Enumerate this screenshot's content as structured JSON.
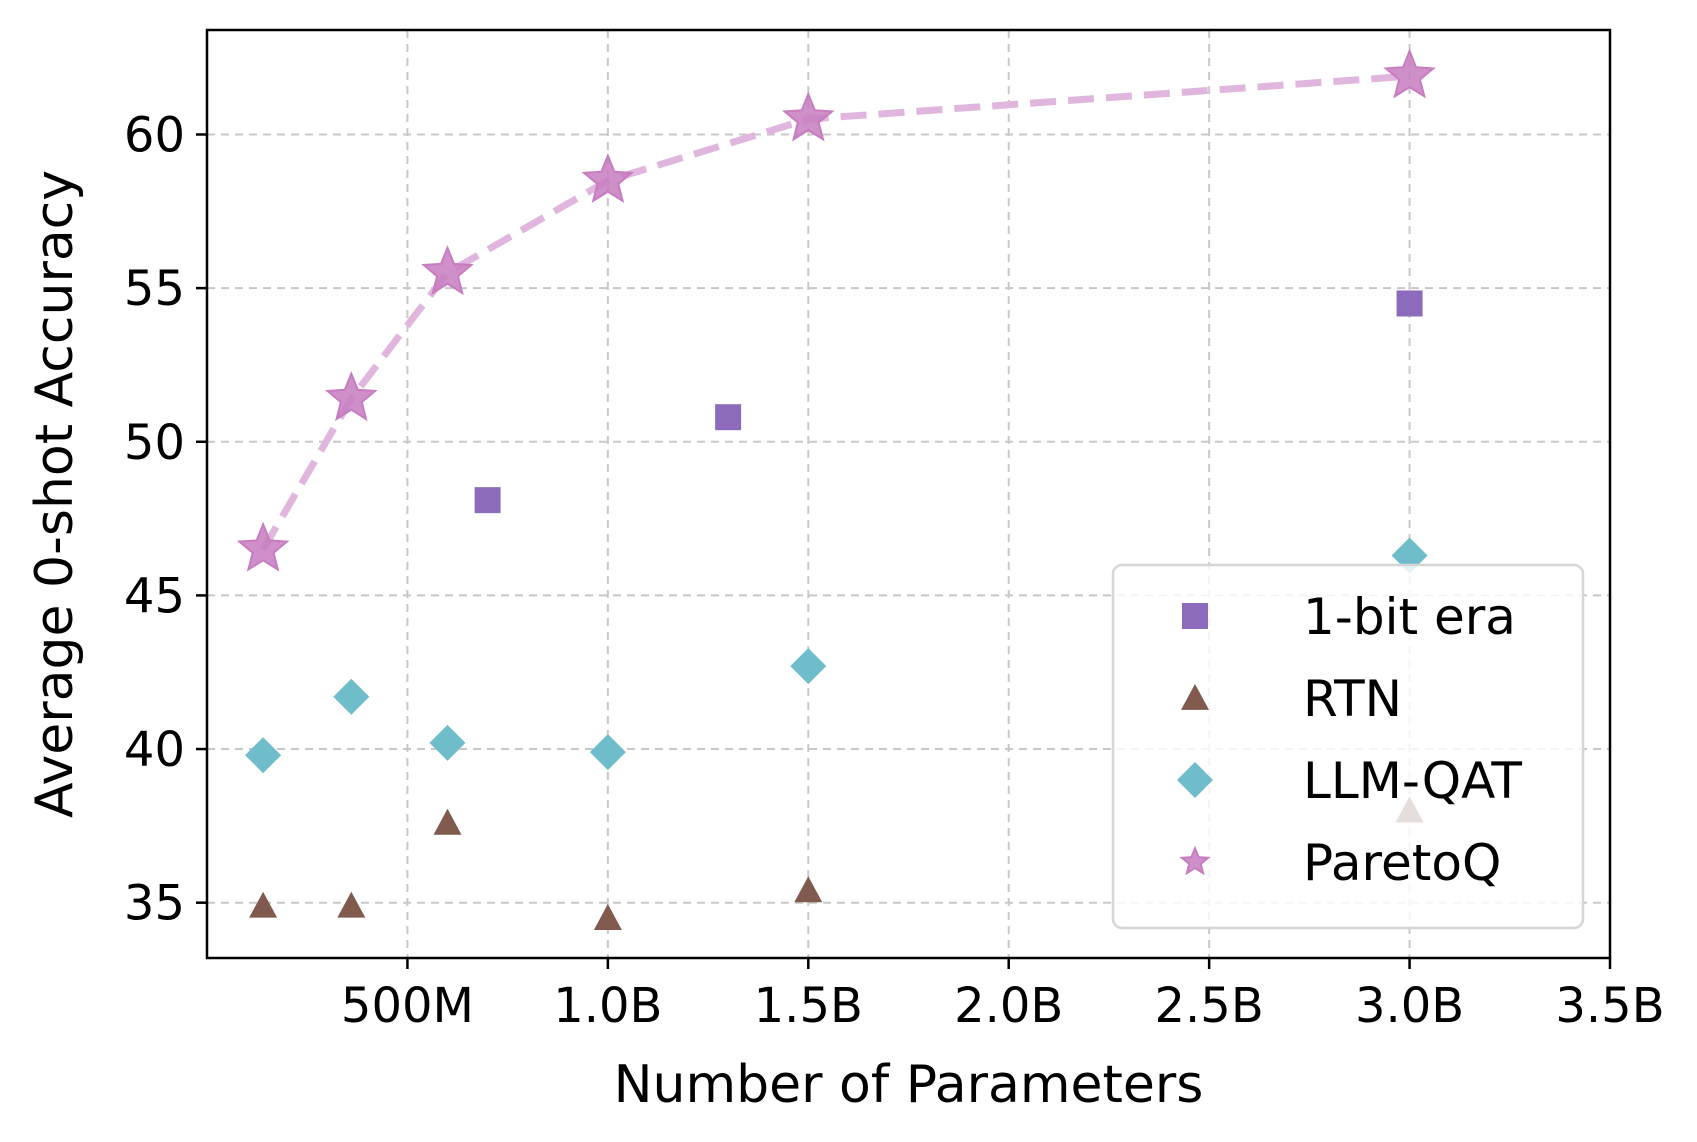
{
  "chart_data": {
    "type": "scatter",
    "title": "",
    "xlabel": "Number of Parameters",
    "ylabel": "Average 0-shot Accuracy",
    "xlim": [
      0.0,
      3.5
    ],
    "ylim": [
      33.2,
      63.4
    ],
    "grid": true,
    "legend_position": "bottom-right",
    "x_ticks": [
      {
        "value": 0.5,
        "label": "500M"
      },
      {
        "value": 1.0,
        "label": "1.0B"
      },
      {
        "value": 1.5,
        "label": "1.5B"
      },
      {
        "value": 2.0,
        "label": "2.0B"
      },
      {
        "value": 2.5,
        "label": "2.5B"
      },
      {
        "value": 3.0,
        "label": "3.0B"
      },
      {
        "value": 3.5,
        "label": "3.5B"
      }
    ],
    "y_ticks": [
      {
        "value": 35,
        "label": "35"
      },
      {
        "value": 40,
        "label": "40"
      },
      {
        "value": 45,
        "label": "45"
      },
      {
        "value": 50,
        "label": "50"
      },
      {
        "value": 55,
        "label": "55"
      },
      {
        "value": 60,
        "label": "60"
      }
    ],
    "series": [
      {
        "name": "1-bit era",
        "marker": "square",
        "color": "#8c6bbd",
        "x": [
          0.7,
          1.3,
          3.0
        ],
        "y": [
          48.1,
          50.8,
          54.5
        ]
      },
      {
        "name": "RTN",
        "marker": "triangle",
        "color": "#7f5a4d",
        "x": [
          0.14,
          0.36,
          0.6,
          1.0,
          1.5,
          3.0
        ],
        "y": [
          34.9,
          34.9,
          37.6,
          34.5,
          35.4,
          38.0
        ]
      },
      {
        "name": "LLM-QAT",
        "marker": "diamond",
        "color": "#6fbccb",
        "x": [
          0.14,
          0.36,
          0.6,
          1.0,
          1.5,
          3.0
        ],
        "y": [
          39.8,
          41.7,
          40.2,
          39.9,
          42.7,
          46.3
        ]
      },
      {
        "name": "ParetoQ",
        "marker": "star",
        "color": "#c77cc0",
        "line": "dashed",
        "line_color": "#e0b6de",
        "x": [
          0.14,
          0.36,
          0.6,
          1.0,
          1.5,
          3.0
        ],
        "y": [
          46.5,
          51.4,
          55.5,
          58.5,
          60.5,
          61.9
        ]
      }
    ]
  }
}
